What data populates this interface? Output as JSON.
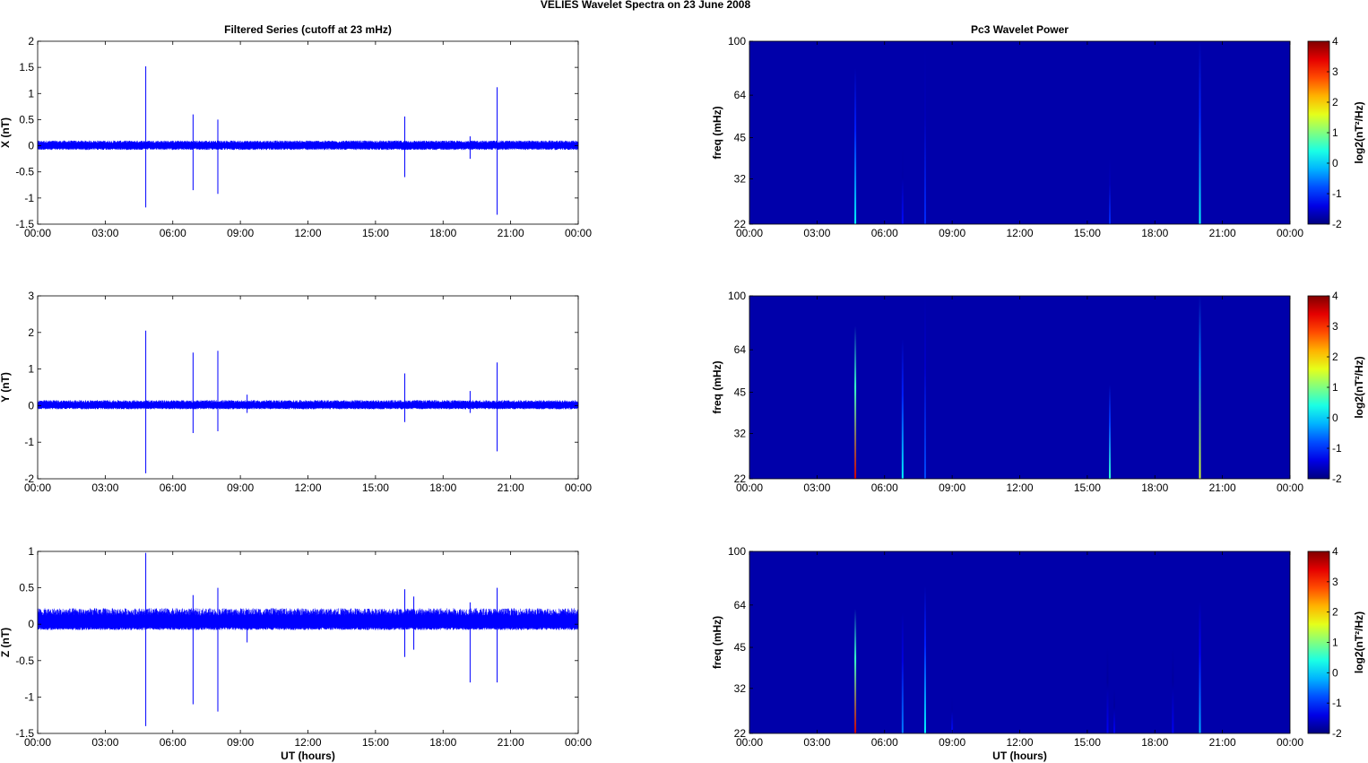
{
  "figure": {
    "title": "VELIES Wavelet Spectra on 23 June      2008"
  },
  "chart_data": [
    {
      "type": "line",
      "title": "Filtered Series (cutoff at 23 mHz)",
      "xlabel": "",
      "ylabel": "X (nT)",
      "xticks": [
        "00:00",
        "03:00",
        "06:00",
        "09:00",
        "12:00",
        "15:00",
        "18:00",
        "21:00",
        "00:00"
      ],
      "xlim": [
        0,
        24
      ],
      "ylim": [
        -1.5,
        2
      ],
      "yticks": [
        "-1.5",
        "-1",
        "-0.5",
        "0",
        "0.5",
        "1",
        "1.5",
        "2"
      ],
      "grid": false,
      "series": [
        {
          "color": "#0000ff",
          "noise_band": [
            -0.08,
            0.1
          ],
          "spikes": [
            {
              "x": 4.8,
              "y": 1.52
            },
            {
              "x": 4.8,
              "y": -1.18
            },
            {
              "x": 6.9,
              "y": 0.6
            },
            {
              "x": 6.9,
              "y": -0.85
            },
            {
              "x": 8.0,
              "y": 0.5
            },
            {
              "x": 8.0,
              "y": -0.92
            },
            {
              "x": 16.3,
              "y": 0.56
            },
            {
              "x": 16.3,
              "y": -0.6
            },
            {
              "x": 19.2,
              "y": 0.18
            },
            {
              "x": 19.2,
              "y": -0.25
            },
            {
              "x": 20.4,
              "y": 1.12
            },
            {
              "x": 20.4,
              "y": -1.32
            }
          ]
        }
      ]
    },
    {
      "type": "heatmap",
      "title": "Pc3 Wavelet Power",
      "xlabel": "",
      "ylabel": "freq (mHz)",
      "xticks": [
        "00:00",
        "03:00",
        "06:00",
        "09:00",
        "12:00",
        "15:00",
        "18:00",
        "21:00",
        "00:00"
      ],
      "xlim": [
        0,
        24
      ],
      "yticks": [
        "22",
        "32",
        "45",
        "64",
        "100"
      ],
      "yscale": "log",
      "ylim": [
        22,
        100
      ],
      "colorbar": {
        "label": "log2(nT²/Hz)",
        "ticks": [
          "-2",
          "-1",
          "0",
          "1",
          "2",
          "3",
          "4"
        ],
        "range": [
          -2,
          4
        ]
      },
      "events": [
        {
          "t": 4.7,
          "fmax": 80,
          "level": 0.2
        },
        {
          "t": 6.8,
          "fmax": 42,
          "level": -1.2
        },
        {
          "t": 7.8,
          "fmax": 95,
          "level": -1.0
        },
        {
          "t": 16.0,
          "fmax": 38,
          "level": -1.0
        },
        {
          "t": 20.0,
          "fmax": 100,
          "level": 0.3
        }
      ]
    },
    {
      "type": "line",
      "title": "",
      "xlabel": "",
      "ylabel": "Y (nT)",
      "xticks": [
        "00:00",
        "03:00",
        "06:00",
        "09:00",
        "12:00",
        "15:00",
        "18:00",
        "21:00",
        "00:00"
      ],
      "xlim": [
        0,
        24
      ],
      "ylim": [
        -2,
        3
      ],
      "yticks": [
        "-2",
        "-1",
        "0",
        "1",
        "2",
        "3"
      ],
      "grid": false,
      "series": [
        {
          "color": "#0000ff",
          "noise_band": [
            -0.1,
            0.15
          ],
          "spikes": [
            {
              "x": 4.8,
              "y": 2.05
            },
            {
              "x": 4.8,
              "y": -1.85
            },
            {
              "x": 6.9,
              "y": 1.45
            },
            {
              "x": 6.9,
              "y": -0.75
            },
            {
              "x": 8.0,
              "y": 1.5
            },
            {
              "x": 8.0,
              "y": -0.7
            },
            {
              "x": 9.3,
              "y": 0.3
            },
            {
              "x": 9.3,
              "y": -0.2
            },
            {
              "x": 16.3,
              "y": 0.88
            },
            {
              "x": 16.3,
              "y": -0.45
            },
            {
              "x": 19.2,
              "y": 0.4
            },
            {
              "x": 19.2,
              "y": -0.2
            },
            {
              "x": 20.4,
              "y": 1.18
            },
            {
              "x": 20.4,
              "y": -1.25
            }
          ]
        }
      ]
    },
    {
      "type": "heatmap",
      "title": "",
      "xlabel": "",
      "ylabel": "freq (mHz)",
      "xticks": [
        "00:00",
        "03:00",
        "06:00",
        "09:00",
        "12:00",
        "15:00",
        "18:00",
        "21:00",
        "00:00"
      ],
      "xlim": [
        0,
        24
      ],
      "yticks": [
        "22",
        "32",
        "45",
        "64",
        "100"
      ],
      "yscale": "log",
      "ylim": [
        22,
        100
      ],
      "colorbar": {
        "label": "log2(nT²/Hz)",
        "ticks": [
          "-2",
          "-1",
          "0",
          "1",
          "2",
          "3",
          "4"
        ],
        "range": [
          -2,
          4
        ]
      },
      "events": [
        {
          "t": 4.7,
          "fmax": 78,
          "level": 3.5
        },
        {
          "t": 6.8,
          "fmax": 70,
          "level": 0.2
        },
        {
          "t": 7.8,
          "fmax": 100,
          "level": -0.8
        },
        {
          "t": 16.0,
          "fmax": 48,
          "level": 0.5
        },
        {
          "t": 20.0,
          "fmax": 100,
          "level": 1.5
        }
      ]
    },
    {
      "type": "line",
      "title": "",
      "xlabel": "UT (hours)",
      "ylabel": "Z (nT)",
      "xticks": [
        "00:00",
        "03:00",
        "06:00",
        "09:00",
        "12:00",
        "15:00",
        "18:00",
        "21:00",
        "00:00"
      ],
      "xlim": [
        0,
        24
      ],
      "ylim": [
        -1.5,
        1
      ],
      "yticks": [
        "-1.5",
        "-1",
        "-0.5",
        "0",
        "0.5",
        "1"
      ],
      "grid": false,
      "series": [
        {
          "color": "#0000ff",
          "noise_band": [
            -0.08,
            0.22
          ],
          "spikes": [
            {
              "x": 4.8,
              "y": 0.98
            },
            {
              "x": 4.8,
              "y": -1.4
            },
            {
              "x": 6.9,
              "y": 0.4
            },
            {
              "x": 6.9,
              "y": -1.1
            },
            {
              "x": 8.0,
              "y": 0.5
            },
            {
              "x": 8.0,
              "y": -1.2
            },
            {
              "x": 9.3,
              "y": 0.2
            },
            {
              "x": 9.3,
              "y": -0.25
            },
            {
              "x": 16.3,
              "y": 0.48
            },
            {
              "x": 16.3,
              "y": -0.45
            },
            {
              "x": 16.7,
              "y": 0.38
            },
            {
              "x": 16.7,
              "y": -0.35
            },
            {
              "x": 19.2,
              "y": 0.3
            },
            {
              "x": 19.2,
              "y": -0.8
            },
            {
              "x": 20.4,
              "y": 0.5
            },
            {
              "x": 20.4,
              "y": -0.8
            }
          ]
        }
      ]
    },
    {
      "type": "heatmap",
      "title": "",
      "xlabel": "UT (hours)",
      "ylabel": "freq (mHz)",
      "xticks": [
        "00:00",
        "03:00",
        "06:00",
        "09:00",
        "12:00",
        "15:00",
        "18:00",
        "21:00",
        "00:00"
      ],
      "xlim": [
        0,
        24
      ],
      "yticks": [
        "22",
        "32",
        "45",
        "64",
        "100"
      ],
      "yscale": "log",
      "ylim": [
        22,
        100
      ],
      "colorbar": {
        "label": "log2(nT²/Hz)",
        "ticks": [
          "-2",
          "-1",
          "0",
          "1",
          "2",
          "3",
          "4"
        ],
        "range": [
          -2,
          4
        ]
      },
      "events": [
        {
          "t": 4.7,
          "fmax": 62,
          "level": 3.5
        },
        {
          "t": 6.8,
          "fmax": 60,
          "level": -0.5
        },
        {
          "t": 7.8,
          "fmax": 75,
          "level": 0.2
        },
        {
          "t": 9.0,
          "fmax": 30,
          "level": -1.2
        },
        {
          "t": 15.9,
          "fmax": 45,
          "level": -1.3
        },
        {
          "t": 16.2,
          "fmax": 32,
          "level": -1.3
        },
        {
          "t": 18.8,
          "fmax": 45,
          "level": -1.3
        },
        {
          "t": 20.0,
          "fmax": 66,
          "level": -0.2
        }
      ]
    }
  ]
}
